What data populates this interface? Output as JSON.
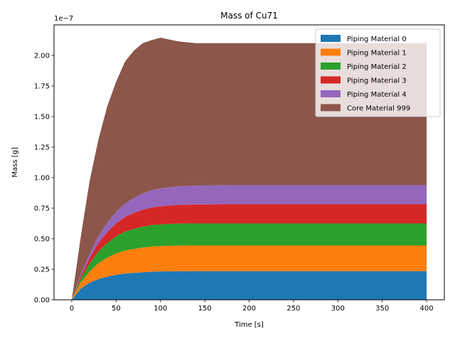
{
  "chart_data": {
    "type": "area",
    "title": "Mass of Cu71",
    "xlabel": "Time [s]",
    "ylabel": "Mass [g]",
    "y_offset_text": "1e−7",
    "y_scale_exponent": -7,
    "xlim": [
      -20,
      420
    ],
    "ylim": [
      0,
      2.25e-07
    ],
    "x_ticks": [
      0,
      50,
      100,
      150,
      200,
      250,
      300,
      350,
      400
    ],
    "x_tick_labels": [
      "0",
      "50",
      "100",
      "150",
      "200",
      "250",
      "300",
      "350",
      "400"
    ],
    "y_ticks": [
      0,
      2.5e-08,
      5e-08,
      7.5e-08,
      1e-07,
      1.25e-07,
      1.5e-07,
      1.75e-07,
      2e-07
    ],
    "y_tick_labels": [
      "0.00",
      "0.25",
      "0.50",
      "0.75",
      "1.00",
      "1.25",
      "1.50",
      "1.75",
      "2.00"
    ],
    "grid": false,
    "stacked": true,
    "legend_position": "top-right",
    "x": [
      0,
      10,
      20,
      30,
      40,
      50,
      60,
      70,
      80,
      90,
      100,
      120,
      140,
      160,
      180,
      200,
      220,
      240,
      260,
      280,
      300,
      320,
      340,
      360,
      380,
      400
    ],
    "series": [
      {
        "name": "Piping Material 0",
        "color": "#1f77b4",
        "values": [
          0,
          9e-09,
          1.4e-08,
          1.7e-08,
          1.9e-08,
          2.05e-08,
          2.15e-08,
          2.2e-08,
          2.25e-08,
          2.3e-08,
          2.32e-08,
          2.34e-08,
          2.35e-08,
          2.35e-08,
          2.35e-08,
          2.35e-08,
          2.35e-08,
          2.35e-08,
          2.35e-08,
          2.35e-08,
          2.35e-08,
          2.35e-08,
          2.35e-08,
          2.35e-08,
          2.35e-08,
          2.35e-08
        ]
      },
      {
        "name": "Piping Material 1",
        "color": "#ff7f0e",
        "values": [
          0,
          5e-09,
          9e-09,
          1.3e-08,
          1.55e-08,
          1.75e-08,
          1.88e-08,
          1.96e-08,
          2.02e-08,
          2.06e-08,
          2.08e-08,
          2.1e-08,
          2.1e-08,
          2.1e-08,
          2.1e-08,
          2.1e-08,
          2.1e-08,
          2.1e-08,
          2.1e-08,
          2.1e-08,
          2.1e-08,
          2.1e-08,
          2.1e-08,
          2.1e-08,
          2.1e-08,
          2.1e-08
        ]
      },
      {
        "name": "Piping Material 2",
        "color": "#2ca02c",
        "values": [
          0,
          3e-09,
          6.5e-09,
          9.5e-09,
          1.2e-08,
          1.4e-08,
          1.55e-08,
          1.65e-08,
          1.72e-08,
          1.76e-08,
          1.78e-08,
          1.8e-08,
          1.8e-08,
          1.8e-08,
          1.8e-08,
          1.8e-08,
          1.8e-08,
          1.8e-08,
          1.8e-08,
          1.8e-08,
          1.8e-08,
          1.8e-08,
          1.8e-08,
          1.8e-08,
          1.8e-08,
          1.8e-08
        ]
      },
      {
        "name": "Piping Material 3",
        "color": "#d62728",
        "values": [
          0,
          2e-09,
          4.5e-09,
          7e-09,
          9e-09,
          1.05e-08,
          1.2e-08,
          1.3e-08,
          1.38e-08,
          1.44e-08,
          1.48e-08,
          1.52e-08,
          1.55e-08,
          1.56e-08,
          1.57e-08,
          1.57e-08,
          1.57e-08,
          1.57e-08,
          1.57e-08,
          1.57e-08,
          1.57e-08,
          1.57e-08,
          1.57e-08,
          1.57e-08,
          1.57e-08,
          1.57e-08
        ]
      },
      {
        "name": "Piping Material 4",
        "color": "#9467bd",
        "values": [
          0,
          1.5e-09,
          3.5e-09,
          5.5e-09,
          7.5e-09,
          9.5e-09,
          1.1e-08,
          1.22e-08,
          1.32e-08,
          1.4e-08,
          1.46e-08,
          1.52e-08,
          1.55e-08,
          1.56e-08,
          1.57e-08,
          1.57e-08,
          1.57e-08,
          1.57e-08,
          1.57e-08,
          1.57e-08,
          1.57e-08,
          1.57e-08,
          1.57e-08,
          1.57e-08,
          1.57e-08,
          1.57e-08
        ]
      },
      {
        "name": "Core Material 999",
        "color": "#8c564b",
        "values": [
          0,
          3.04e-08,
          5.92e-08,
          7.91e-08,
          9.53e-08,
          1.065e-07,
          1.161e-07,
          1.206e-07,
          1.231e-07,
          1.229e-07,
          1.233e-07,
          1.187e-07,
          1.165e-07,
          1.163e-07,
          1.161e-07,
          1.161e-07,
          1.161e-07,
          1.161e-07,
          1.161e-07,
          1.161e-07,
          1.161e-07,
          1.161e-07,
          1.161e-07,
          1.161e-07,
          1.161e-07,
          1.161e-07
        ]
      }
    ]
  }
}
